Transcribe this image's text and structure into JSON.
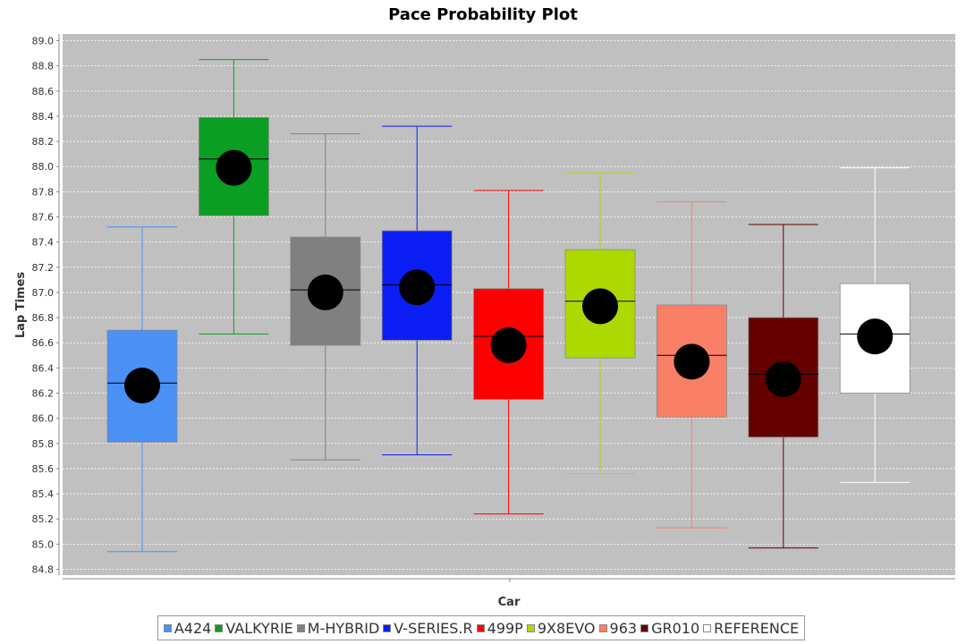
{
  "chart_data": {
    "type": "boxplot",
    "title": "Pace Probability Plot",
    "xlabel": "Car",
    "ylabel": "Lap Times",
    "ylim": [
      84.75,
      89.05
    ],
    "yticks": [
      "84.8",
      "85.0",
      "85.2",
      "85.4",
      "85.6",
      "85.8",
      "86.0",
      "86.2",
      "86.4",
      "86.6",
      "86.8",
      "87.0",
      "87.2",
      "87.4",
      "87.6",
      "87.8",
      "88.0",
      "88.2",
      "88.4",
      "88.6",
      "88.8",
      "89.0"
    ],
    "grid": true,
    "legend_position": "bottom",
    "series": [
      {
        "name": "A424",
        "color": "#4a90f5",
        "whisker_low": 84.94,
        "q1": 85.81,
        "median": 86.28,
        "q3": 86.7,
        "whisker_high": 87.52,
        "mean": 86.26
      },
      {
        "name": "VALKYRIE",
        "color": "#0a9e22",
        "whisker_low": 86.67,
        "q1": 87.61,
        "median": 88.06,
        "q3": 88.39,
        "whisker_high": 88.85,
        "mean": 87.99
      },
      {
        "name": "M-HYBRID",
        "color": "#808080",
        "whisker_low": 85.67,
        "q1": 86.58,
        "median": 87.02,
        "q3": 87.44,
        "whisker_high": 88.26,
        "mean": 87.0
      },
      {
        "name": "V-SERIES.R",
        "color": "#0a1ef5",
        "whisker_low": 85.71,
        "q1": 86.62,
        "median": 87.06,
        "q3": 87.49,
        "whisker_high": 88.32,
        "mean": 87.04
      },
      {
        "name": "499P",
        "color": "#ff0000",
        "whisker_low": 85.24,
        "q1": 86.15,
        "median": 86.65,
        "q3": 87.03,
        "whisker_high": 87.81,
        "mean": 86.58
      },
      {
        "name": "9X8EVO",
        "color": "#add800",
        "whisker_low": 85.56,
        "q1": 86.48,
        "median": 86.93,
        "q3": 87.34,
        "whisker_high": 87.95,
        "mean": 86.89
      },
      {
        "name": "963",
        "color": "#fa7f67",
        "whisker_low": 85.13,
        "q1": 86.01,
        "median": 86.5,
        "q3": 86.9,
        "whisker_high": 87.72,
        "mean": 86.45
      },
      {
        "name": "GR010",
        "color": "#640000",
        "whisker_low": 84.97,
        "q1": 85.85,
        "median": 86.35,
        "q3": 86.8,
        "whisker_high": 87.54,
        "mean": 86.31
      },
      {
        "name": "REFERENCE",
        "color": "#ffffff",
        "whisker_low": 85.49,
        "q1": 86.2,
        "median": 86.67,
        "q3": 87.07,
        "whisker_high": 87.99,
        "mean": 86.65
      }
    ]
  },
  "colors": {
    "plot_background": "#c0c0c0",
    "gridline": "#ffffff",
    "whisker_ref": "#ffffff",
    "mean_marker": "#000000",
    "median_line": "#000000"
  }
}
